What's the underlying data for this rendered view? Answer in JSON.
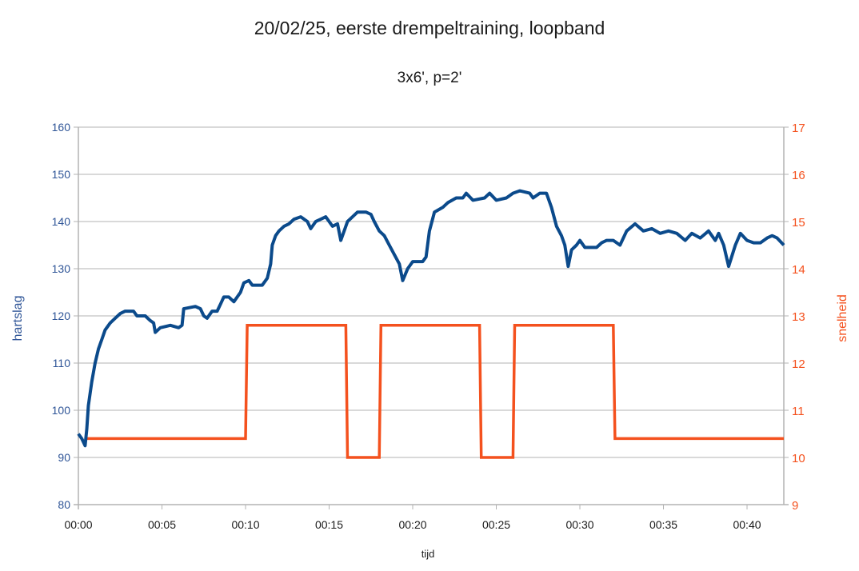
{
  "chart_data": {
    "type": "line",
    "title": "20/02/25, eerste drempeltraining, loopband",
    "subtitle": "3x6', p=2'",
    "xlabel": "tijd",
    "ylabel": "hartslag",
    "y2label": "snelheid",
    "xlim_minutes": [
      0,
      42.2
    ],
    "ylim": [
      80,
      160
    ],
    "y2lim": [
      9,
      17
    ],
    "grid": true,
    "legend": "none",
    "x_ticks": [
      "00:00",
      "00:05",
      "00:10",
      "00:15",
      "00:20",
      "00:25",
      "00:30",
      "00:35",
      "00:40"
    ],
    "y_ticks": [
      "80",
      "90",
      "100",
      "110",
      "120",
      "130",
      "140",
      "150",
      "160"
    ],
    "y2_ticks": [
      "9",
      "10",
      "11",
      "12",
      "13",
      "14",
      "15",
      "16",
      "17"
    ],
    "series": [
      {
        "name": "hartslag",
        "axis": "left",
        "color": "#0b4a8b",
        "x_minutes": [
          0.0,
          0.2,
          0.4,
          0.5,
          0.6,
          0.8,
          1.0,
          1.2,
          1.4,
          1.6,
          1.9,
          2.2,
          2.5,
          2.8,
          3.3,
          3.5,
          4.0,
          4.3,
          4.5,
          4.6,
          4.9,
          5.5,
          6.0,
          6.2,
          6.3,
          7.0,
          7.3,
          7.5,
          7.7,
          8.0,
          8.3,
          8.5,
          8.7,
          9.0,
          9.3,
          9.7,
          9.9,
          10.2,
          10.4,
          11.0,
          11.3,
          11.5,
          11.6,
          11.8,
          12.0,
          12.3,
          12.6,
          12.9,
          13.3,
          13.7,
          13.9,
          14.2,
          14.5,
          14.8,
          15.2,
          15.5,
          15.7,
          15.9,
          16.1,
          16.4,
          16.7,
          17.2,
          17.5,
          17.7,
          18.0,
          18.3,
          18.6,
          18.9,
          19.2,
          19.4,
          19.7,
          20.0,
          20.6,
          20.8,
          21.0,
          21.3,
          21.8,
          22.1,
          22.6,
          23.0,
          23.2,
          23.6,
          24.3,
          24.6,
          25.0,
          25.6,
          26.0,
          26.4,
          27.0,
          27.2,
          27.6,
          28.0,
          28.3,
          28.6,
          28.9,
          29.1,
          29.3,
          29.5,
          29.8,
          30.0,
          30.3,
          31.0,
          31.3,
          31.6,
          32.0,
          32.4,
          32.8,
          33.3,
          33.8,
          34.3,
          34.8,
          35.3,
          35.8,
          36.3,
          36.7,
          37.2,
          37.7,
          38.1,
          38.3,
          38.6,
          38.9,
          39.3,
          39.6,
          40.0,
          40.4,
          40.8,
          41.2,
          41.5,
          41.8,
          42.2
        ],
        "values": [
          95,
          94,
          92.5,
          96,
          101,
          106,
          110,
          113,
          115,
          117,
          118.5,
          119.5,
          120.5,
          121,
          121,
          120,
          120,
          119,
          118.5,
          116.5,
          117.5,
          118,
          117.5,
          118,
          121.5,
          122,
          121.5,
          120,
          119.5,
          121,
          121,
          122.5,
          124,
          124,
          123,
          125,
          127,
          127.5,
          126.5,
          126.5,
          128,
          131,
          135,
          137,
          138,
          139,
          139.5,
          140.5,
          141,
          140,
          138.5,
          140,
          140.5,
          141,
          139,
          139.5,
          136,
          138,
          140,
          141,
          142,
          142,
          141.5,
          140,
          138,
          137,
          135,
          133,
          131,
          127.5,
          130,
          131.5,
          131.5,
          132.5,
          138,
          142,
          143,
          144,
          145,
          145,
          146,
          144.5,
          145,
          146,
          144.5,
          145,
          146,
          146.5,
          146,
          145,
          146,
          146,
          143,
          139,
          137,
          135,
          130.5,
          134,
          135,
          136,
          134.5,
          134.5,
          135.5,
          136,
          136,
          135,
          138,
          139.5,
          138,
          138.5,
          137.5,
          138,
          137.5,
          136,
          137.5,
          136.5,
          138,
          136,
          137.5,
          135,
          130.5,
          135,
          137.5,
          136,
          135.5,
          135.5,
          136.5,
          137,
          136.5,
          135,
          134.5,
          134.5
        ]
      },
      {
        "name": "snelheid",
        "axis": "right",
        "color": "#f4511e",
        "x_minutes": [
          0.4,
          10.0,
          10.1,
          16.0,
          16.1,
          18.0,
          18.1,
          24.0,
          24.1,
          26.0,
          26.1,
          32.0,
          32.1,
          42.2
        ],
        "values": [
          10.4,
          10.4,
          12.8,
          12.8,
          10.0,
          10.0,
          12.8,
          12.8,
          10.0,
          10.0,
          12.8,
          12.8,
          10.4,
          10.4
        ]
      }
    ]
  }
}
